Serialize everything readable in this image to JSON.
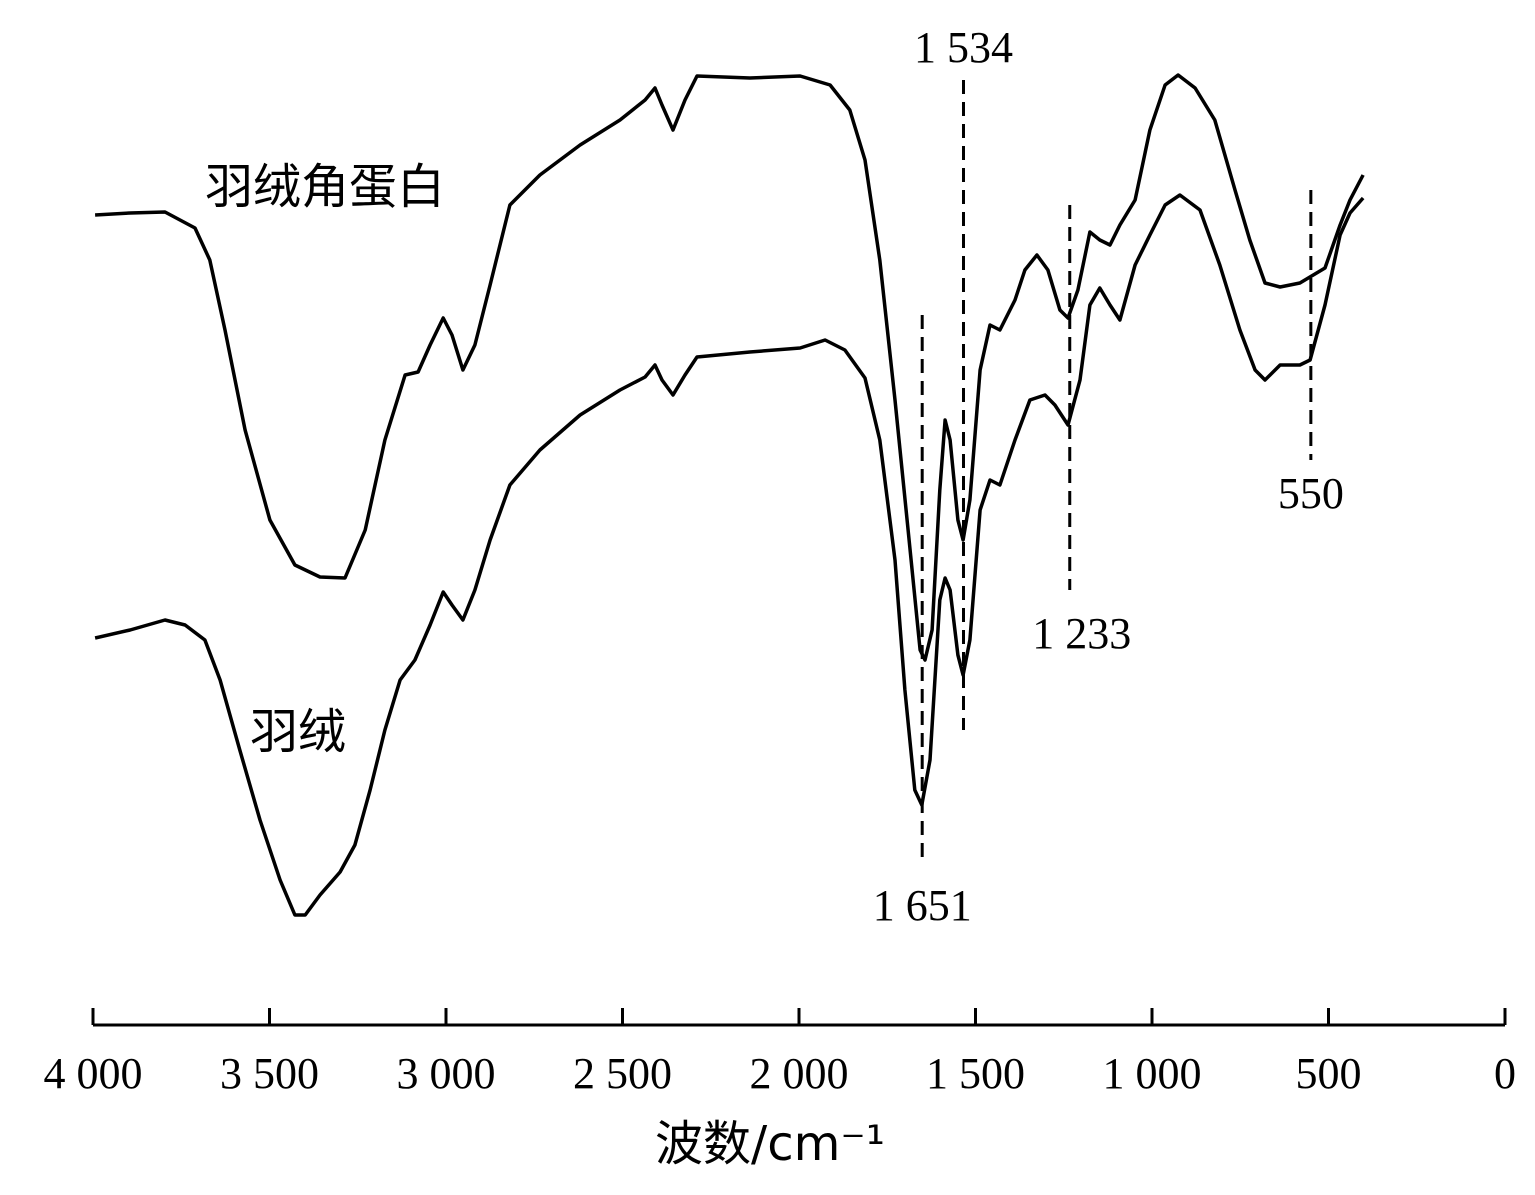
{
  "chart_data": {
    "type": "line",
    "xlabel": "波数/cm⁻¹",
    "xlim": [
      4000,
      0
    ],
    "xticks": [
      {
        "value": 4000,
        "label": "4 000"
      },
      {
        "value": 3500,
        "label": "3 500"
      },
      {
        "value": 3000,
        "label": "3 000"
      },
      {
        "value": 2500,
        "label": "2 500"
      },
      {
        "value": 2000,
        "label": "2 000"
      },
      {
        "value": 1500,
        "label": "1 500"
      },
      {
        "value": 1000,
        "label": "1 000"
      },
      500,
      0
    ],
    "ylim": [
      0,
      100
    ],
    "annotations": [
      {
        "value": 1534,
        "label": "1 534"
      },
      {
        "value": 1651,
        "label": "1 651"
      },
      {
        "value": 1233,
        "label": "1 233"
      },
      {
        "value": 550,
        "label": "550"
      }
    ],
    "series": [
      {
        "name": "羽绒角蛋白",
        "color": "#000000",
        "x": [
          3994,
          3895,
          3796,
          3711,
          3669,
          3626,
          3569,
          3499,
          3428,
          3357,
          3286,
          3229,
          3173,
          3116,
          3079,
          3045,
          3008,
          2983,
          2952,
          2918,
          2875,
          2819,
          2734,
          2620,
          2507,
          2436,
          2408,
          2388,
          2357,
          2323,
          2289,
          2139,
          1997,
          1912,
          1856,
          1813,
          1771,
          1728,
          1691,
          1657,
          1643,
          1623,
          1601,
          1586,
          1572,
          1550,
          1535,
          1516,
          1487,
          1459,
          1431,
          1388,
          1360,
          1326,
          1295,
          1261,
          1238,
          1210,
          1176,
          1148,
          1119,
          1091,
          1048,
          1006,
          963,
          926,
          878,
          822,
          765,
          723,
          680,
          637,
          581,
          510,
          467,
          439,
          402
        ],
        "values": [
          78.5,
          78.7,
          78.8,
          77.2,
          74,
          67,
          57,
          48,
          43.5,
          42.3,
          42.2,
          47,
          56,
          62.5,
          62.8,
          65.5,
          68.2,
          66.5,
          63,
          65.5,
          71.5,
          79.5,
          82.5,
          85.5,
          88,
          90,
          91.2,
          89.5,
          87,
          90,
          92.4,
          92.2,
          92.4,
          91.5,
          89,
          84,
          74,
          60,
          47,
          35,
          34,
          37,
          51,
          58,
          56,
          48,
          46,
          50,
          63,
          67.5,
          67,
          70,
          73,
          74.5,
          73,
          69,
          68.2,
          71,
          76.8,
          76,
          75.5,
          77.5,
          80,
          87,
          91.5,
          92.5,
          91.2,
          88,
          81,
          76,
          71.7,
          71.3,
          71.7,
          73.2,
          77.5,
          80,
          82.5
        ]
      },
      {
        "name": "羽绒",
        "color": "#000000",
        "x": [
          3994,
          3895,
          3796,
          3739,
          3683,
          3640,
          3584,
          3527,
          3470,
          3428,
          3399,
          3357,
          3300,
          3258,
          3215,
          3173,
          3130,
          3088,
          3045,
          3008,
          2983,
          2952,
          2918,
          2875,
          2819,
          2734,
          2620,
          2507,
          2436,
          2408,
          2388,
          2357,
          2323,
          2289,
          2139,
          1997,
          1926,
          1870,
          1813,
          1771,
          1728,
          1700,
          1672,
          1652,
          1629,
          1601,
          1586,
          1572,
          1550,
          1535,
          1516,
          1487,
          1459,
          1431,
          1388,
          1346,
          1303,
          1275,
          1238,
          1204,
          1176,
          1148,
          1119,
          1091,
          1048,
          1006,
          963,
          921,
          864,
          808,
          751,
          708,
          680,
          637,
          581,
          552,
          510,
          467,
          439,
          402
        ],
        "values": [
          36.2,
          37,
          38,
          37.5,
          36,
          32,
          25,
          18,
          12,
          8.5,
          8.5,
          10.5,
          12.8,
          15.5,
          21,
          27,
          32,
          34,
          37.5,
          40.8,
          39.5,
          38,
          41,
          46,
          51.5,
          55,
          58.5,
          61,
          62.3,
          63.5,
          62,
          60.5,
          62.5,
          64.3,
          64.8,
          65.2,
          66,
          65,
          62.2,
          56,
          44,
          31,
          21,
          19.5,
          24,
          40,
          42.2,
          41,
          34.5,
          32.5,
          36,
          49,
          52,
          51.5,
          56,
          60,
          60.5,
          59.5,
          57.5,
          62,
          69.5,
          71.2,
          69.5,
          68,
          73.5,
          76.5,
          79.5,
          80.5,
          79,
          73.5,
          67,
          63,
          62,
          63.5,
          63.5,
          64,
          69.5,
          76.5,
          78.7,
          80.2
        ]
      }
    ]
  }
}
